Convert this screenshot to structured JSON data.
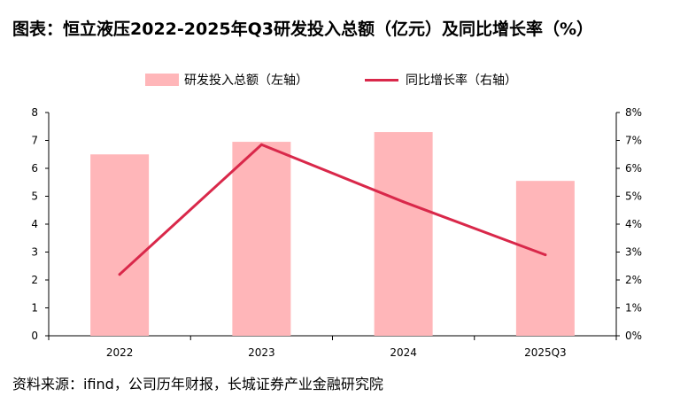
{
  "title": "图表：恒立液压2022-2025年Q3研发投入总额（亿元）及同比增长率（%）",
  "source": "资料来源：ifind，公司历年财报，长城证券产业金融研究院",
  "colors": {
    "bar": "#ffb6b9",
    "line": "#d9284a",
    "axis": "#000000"
  },
  "chart_data": {
    "type": "bar",
    "categories": [
      "2022",
      "2023",
      "2024",
      "2025Q3"
    ],
    "series": [
      {
        "name": "研发投入总额（左轴）",
        "type": "bar",
        "axis": "left",
        "values": [
          6.5,
          6.95,
          7.3,
          5.55
        ]
      },
      {
        "name": "同比增长率（右轴）",
        "type": "line",
        "axis": "right",
        "values": [
          2.2,
          6.85,
          4.8,
          2.9
        ]
      }
    ],
    "y_left": {
      "min": 0,
      "max": 8,
      "ticks": [
        "0",
        "1",
        "2",
        "3",
        "4",
        "5",
        "6",
        "7",
        "8"
      ]
    },
    "y_right": {
      "min": 0,
      "max": 8,
      "ticks": [
        "0%",
        "1%",
        "2%",
        "3%",
        "4%",
        "5%",
        "6%",
        "7%",
        "8%"
      ]
    },
    "legend_position": "top-center",
    "grid": false
  }
}
